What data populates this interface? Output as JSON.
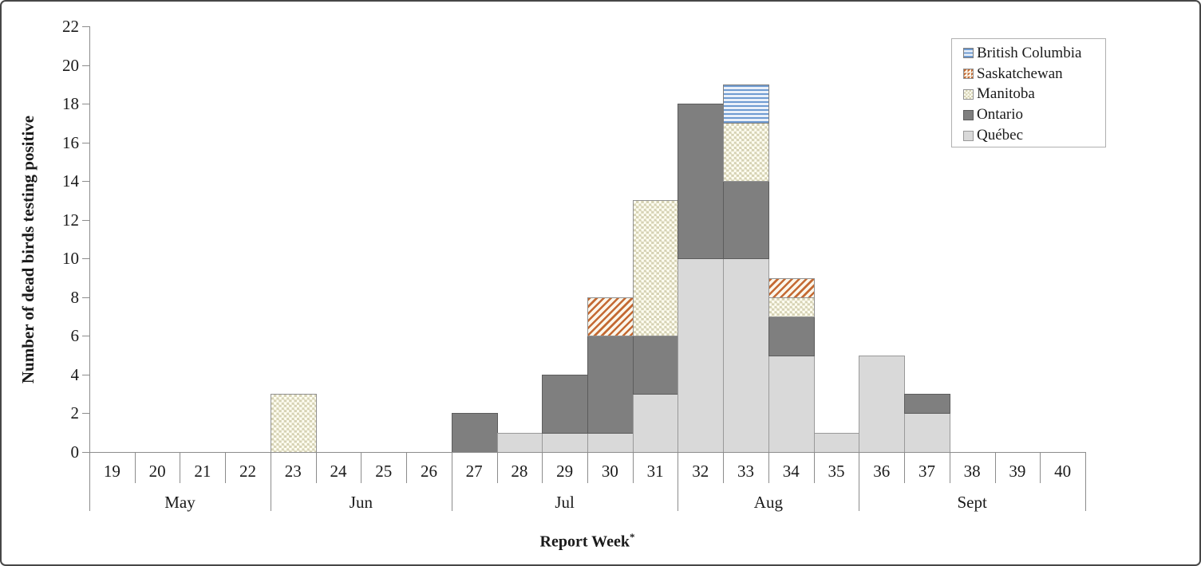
{
  "chart_data": {
    "type": "bar",
    "stacked": true,
    "ylabel": "Number of dead birds testing positive",
    "xlabel": "Report Week",
    "xlabel_suffix": "*",
    "ylim": [
      0,
      22
    ],
    "ytick_step": 2,
    "yticks": [
      0,
      2,
      4,
      6,
      8,
      10,
      12,
      14,
      16,
      18,
      20,
      22
    ],
    "grid": "off",
    "categories": [
      19,
      20,
      21,
      22,
      23,
      24,
      25,
      26,
      27,
      28,
      29,
      30,
      31,
      32,
      33,
      34,
      35,
      36,
      37,
      38,
      39,
      40
    ],
    "month_groups": [
      {
        "label": "May",
        "start_week": 19,
        "end_week": 22
      },
      {
        "label": "Jun",
        "start_week": 23,
        "end_week": 26
      },
      {
        "label": "Jul",
        "start_week": 27,
        "end_week": 31
      },
      {
        "label": "Aug",
        "start_week": 32,
        "end_week": 35
      },
      {
        "label": "Sept",
        "start_week": 36,
        "end_week": 40
      }
    ],
    "series": [
      {
        "name": "Québec",
        "key": "quebec",
        "color": "#d9d9d9",
        "pattern": "solid",
        "values": [
          0,
          0,
          0,
          0,
          0,
          0,
          0,
          0,
          0,
          1,
          1,
          1,
          3,
          10,
          10,
          5,
          1,
          5,
          2,
          0,
          0,
          0
        ]
      },
      {
        "name": "Ontario",
        "key": "ontario",
        "color": "#7f7f7f",
        "pattern": "solid",
        "values": [
          0,
          0,
          0,
          0,
          0,
          0,
          0,
          0,
          2,
          0,
          3,
          5,
          3,
          8,
          4,
          2,
          0,
          0,
          1,
          0,
          0,
          0
        ]
      },
      {
        "name": "Manitoba",
        "key": "manitoba",
        "color": "#d6d2b4",
        "pattern": "checkerboard",
        "values": [
          0,
          0,
          0,
          0,
          3,
          0,
          0,
          0,
          0,
          0,
          0,
          0,
          7,
          0,
          3,
          1,
          0,
          0,
          0,
          0,
          0,
          0
        ]
      },
      {
        "name": "Saskatchewan",
        "key": "saskatchewan",
        "color": "#c46a33",
        "pattern": "diagonal-stripes",
        "values": [
          0,
          0,
          0,
          0,
          0,
          0,
          0,
          0,
          0,
          0,
          0,
          2,
          0,
          0,
          0,
          1,
          0,
          0,
          0,
          0,
          0,
          0
        ]
      },
      {
        "name": "British Columbia",
        "key": "british-columbia",
        "color": "#6f9bd1",
        "pattern": "horizontal-stripes",
        "values": [
          0,
          0,
          0,
          0,
          0,
          0,
          0,
          0,
          0,
          0,
          0,
          0,
          0,
          0,
          2,
          0,
          0,
          0,
          0,
          0,
          0,
          0
        ]
      }
    ],
    "legend": {
      "position": "top-right",
      "order": [
        "British Columbia",
        "Saskatchewan",
        "Manitoba",
        "Ontario",
        "Québec"
      ]
    }
  }
}
